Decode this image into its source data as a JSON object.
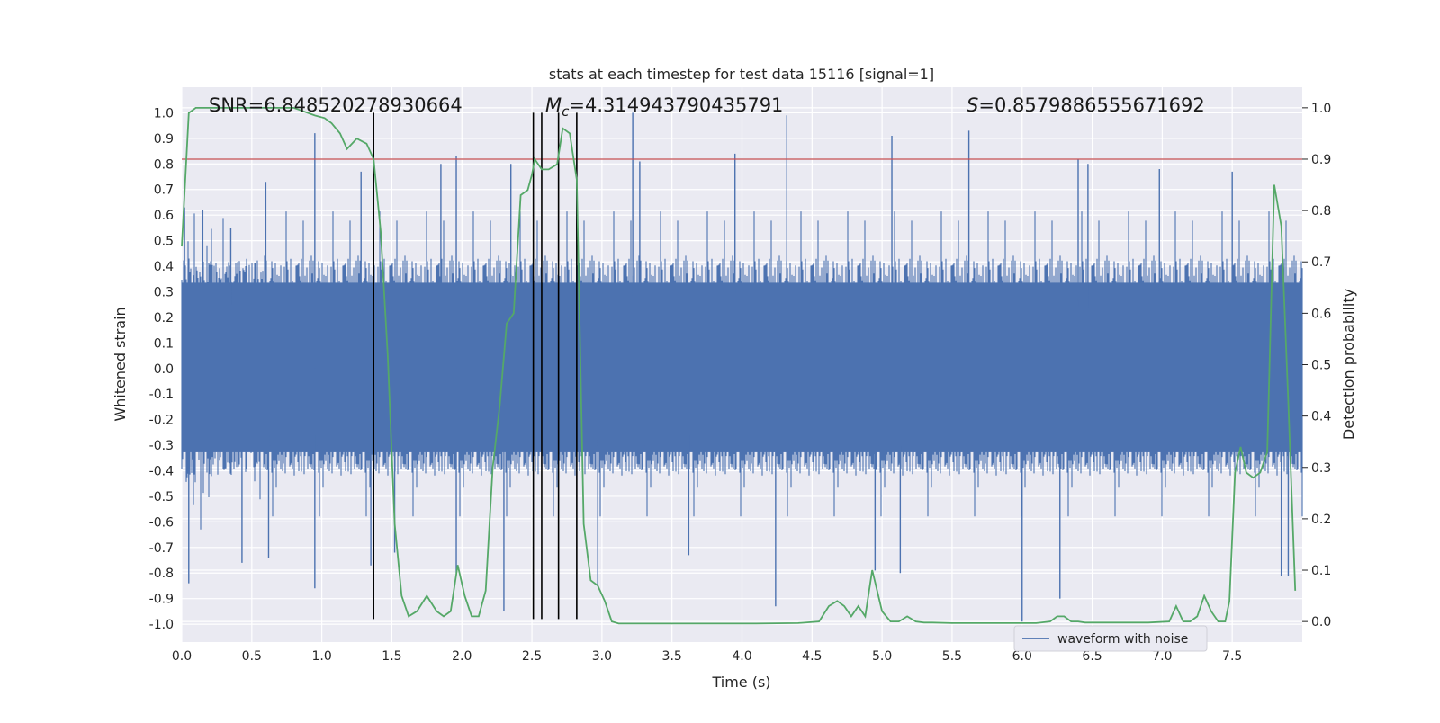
{
  "chart_data": {
    "type": "line",
    "title": "stats at each timestep for test data 15116 [signal=1]",
    "xlabel": "Time (s)",
    "ylabel": "Whitened strain",
    "ylabel_right": "Detection probability",
    "xlim": [
      0.0,
      8.0
    ],
    "ylim": [
      -1.07,
      1.1
    ],
    "ylim_right": [
      -0.04,
      1.04
    ],
    "x_ticks": [
      "0.0",
      "0.5",
      "1.0",
      "1.5",
      "2.0",
      "2.5",
      "3.0",
      "3.5",
      "4.0",
      "4.5",
      "5.0",
      "5.5",
      "6.0",
      "6.5",
      "7.0",
      "7.5"
    ],
    "x_tick_values": [
      0,
      0.5,
      1,
      1.5,
      2,
      2.5,
      3,
      3.5,
      4,
      4.5,
      5,
      5.5,
      6,
      6.5,
      7,
      7.5
    ],
    "y_ticks": [
      "1.0",
      "0.9",
      "0.8",
      "0.7",
      "0.6",
      "0.5",
      "0.4",
      "0.3",
      "0.2",
      "0.1",
      "0.0",
      "-0.1",
      "-0.2",
      "-0.3",
      "-0.4",
      "-0.5",
      "-0.6",
      "-0.7",
      "-0.8",
      "-0.9",
      "-1.0"
    ],
    "y_tick_values": [
      1.0,
      0.9,
      0.8,
      0.7,
      0.6,
      0.5,
      0.4,
      0.3,
      0.2,
      0.1,
      0.0,
      -0.1,
      -0.2,
      -0.3,
      -0.4,
      -0.5,
      -0.6,
      -0.7,
      -0.8,
      -0.9,
      -1.0
    ],
    "y_ticks_right": [
      "1.0",
      "0.9",
      "0.8",
      "0.7",
      "0.6",
      "0.5",
      "0.4",
      "0.3",
      "0.2",
      "0.1",
      "0.0"
    ],
    "y_tick_values_right": [
      1.0,
      0.9,
      0.8,
      0.7,
      0.6,
      0.5,
      0.4,
      0.3,
      0.2,
      0.1,
      0.0
    ],
    "grid": true,
    "legend": {
      "position": "lower-right",
      "entries": [
        "waveform with noise"
      ]
    },
    "annotations": {
      "snr": "SNR=6.848520278930664",
      "mc_symbol": "M",
      "mc_sub": "c",
      "mc_value": "=4.314943790435791",
      "s_symbol": "S",
      "s_value": "=0.8579886555671692"
    },
    "threshold": {
      "axis": "right",
      "value": 0.9
    },
    "vertical_markers": [
      1.37,
      2.51,
      2.57,
      2.69,
      2.82
    ],
    "waveform": {
      "name": "waveform with noise",
      "axis": "left",
      "envelope_pos": 0.43,
      "envelope_neg": -0.42,
      "noise_peaks": [
        {
          "x": 0.02,
          "y": 0.63
        },
        {
          "x": 0.05,
          "y": -0.84
        },
        {
          "x": 0.15,
          "y": 0.62
        },
        {
          "x": 0.35,
          "y": 0.55
        },
        {
          "x": 0.43,
          "y": -0.76
        },
        {
          "x": 0.6,
          "y": 0.73
        },
        {
          "x": 0.62,
          "y": -0.74
        },
        {
          "x": 0.95,
          "y": 0.92
        },
        {
          "x": 0.95,
          "y": -0.86
        },
        {
          "x": 1.28,
          "y": 0.77
        },
        {
          "x": 1.35,
          "y": -0.77
        },
        {
          "x": 1.37,
          "y": 0.82
        },
        {
          "x": 1.52,
          "y": -0.72
        },
        {
          "x": 1.85,
          "y": 0.8
        },
        {
          "x": 1.96,
          "y": 0.83
        },
        {
          "x": 1.96,
          "y": -0.8
        },
        {
          "x": 2.3,
          "y": -0.95
        },
        {
          "x": 2.35,
          "y": 0.8
        },
        {
          "x": 2.82,
          "y": 0.93
        },
        {
          "x": 2.97,
          "y": -0.85
        },
        {
          "x": 3.22,
          "y": 1.0
        },
        {
          "x": 3.27,
          "y": 0.81
        },
        {
          "x": 3.62,
          "y": -0.73
        },
        {
          "x": 3.95,
          "y": 0.84
        },
        {
          "x": 4.24,
          "y": -0.93
        },
        {
          "x": 4.32,
          "y": 0.99
        },
        {
          "x": 4.95,
          "y": -0.79
        },
        {
          "x": 5.07,
          "y": 0.91
        },
        {
          "x": 5.13,
          "y": -0.8
        },
        {
          "x": 5.62,
          "y": 0.93
        },
        {
          "x": 6.0,
          "y": -0.99
        },
        {
          "x": 6.27,
          "y": -0.9
        },
        {
          "x": 6.4,
          "y": 0.82
        },
        {
          "x": 6.47,
          "y": 0.8
        },
        {
          "x": 6.98,
          "y": 0.78
        },
        {
          "x": 7.5,
          "y": 0.77
        },
        {
          "x": 7.85,
          "y": -0.81
        },
        {
          "x": 7.9,
          "y": -0.81
        }
      ]
    },
    "series": [
      {
        "name": "",
        "axis": "right",
        "x": [
          0.0,
          0.05,
          0.1,
          0.2,
          0.4,
          0.6,
          0.8,
          0.85,
          0.95,
          1.02,
          1.07,
          1.13,
          1.18,
          1.25,
          1.32,
          1.37,
          1.42,
          1.47,
          1.52,
          1.57,
          1.62,
          1.68,
          1.75,
          1.82,
          1.87,
          1.92,
          1.97,
          2.02,
          2.07,
          2.12,
          2.17,
          2.22,
          2.27,
          2.32,
          2.37,
          2.42,
          2.47,
          2.5,
          2.52,
          2.57,
          2.62,
          2.68,
          2.72,
          2.77,
          2.82,
          2.87,
          2.92,
          2.97,
          3.02,
          3.07,
          3.12,
          3.17,
          3.3,
          3.5,
          3.8,
          4.1,
          4.4,
          4.55,
          4.62,
          4.68,
          4.73,
          4.78,
          4.83,
          4.88,
          4.93,
          5.0,
          5.06,
          5.12,
          5.18,
          5.24,
          5.3,
          5.36,
          5.5,
          5.7,
          5.9,
          6.1,
          6.2,
          6.25,
          6.3,
          6.35,
          6.4,
          6.45,
          6.5,
          6.7,
          6.9,
          7.05,
          7.1,
          7.15,
          7.2,
          7.25,
          7.3,
          7.35,
          7.4,
          7.45,
          7.48,
          7.52,
          7.56,
          7.6,
          7.65,
          7.7,
          7.75,
          7.8,
          7.85,
          7.9,
          7.95
        ],
        "y": [
          0.73,
          0.99,
          1.0,
          1.0,
          1.0,
          1.0,
          1.0,
          0.995,
          0.985,
          0.98,
          0.97,
          0.95,
          0.92,
          0.94,
          0.93,
          0.9,
          0.76,
          0.52,
          0.19,
          0.05,
          0.01,
          0.02,
          0.05,
          0.02,
          0.01,
          0.02,
          0.11,
          0.05,
          0.01,
          0.01,
          0.06,
          0.3,
          0.42,
          0.58,
          0.6,
          0.83,
          0.84,
          0.87,
          0.9,
          0.88,
          0.88,
          0.89,
          0.96,
          0.95,
          0.86,
          0.19,
          0.08,
          0.07,
          0.04,
          0.0,
          -0.004,
          -0.004,
          -0.004,
          -0.004,
          -0.004,
          -0.004,
          -0.003,
          0.0,
          0.03,
          0.04,
          0.03,
          0.01,
          0.03,
          0.01,
          0.1,
          0.02,
          0.0,
          0.0,
          0.01,
          0.0,
          -0.002,
          -0.002,
          -0.003,
          -0.003,
          -0.003,
          -0.003,
          0.0,
          0.01,
          0.01,
          0.0,
          0.0,
          -0.002,
          -0.002,
          -0.002,
          -0.002,
          0.0,
          0.03,
          0.0,
          0.0,
          0.01,
          0.05,
          0.02,
          0.0,
          0.0,
          0.04,
          0.29,
          0.34,
          0.29,
          0.28,
          0.29,
          0.33,
          0.85,
          0.77,
          0.43,
          0.06
        ]
      }
    ]
  }
}
